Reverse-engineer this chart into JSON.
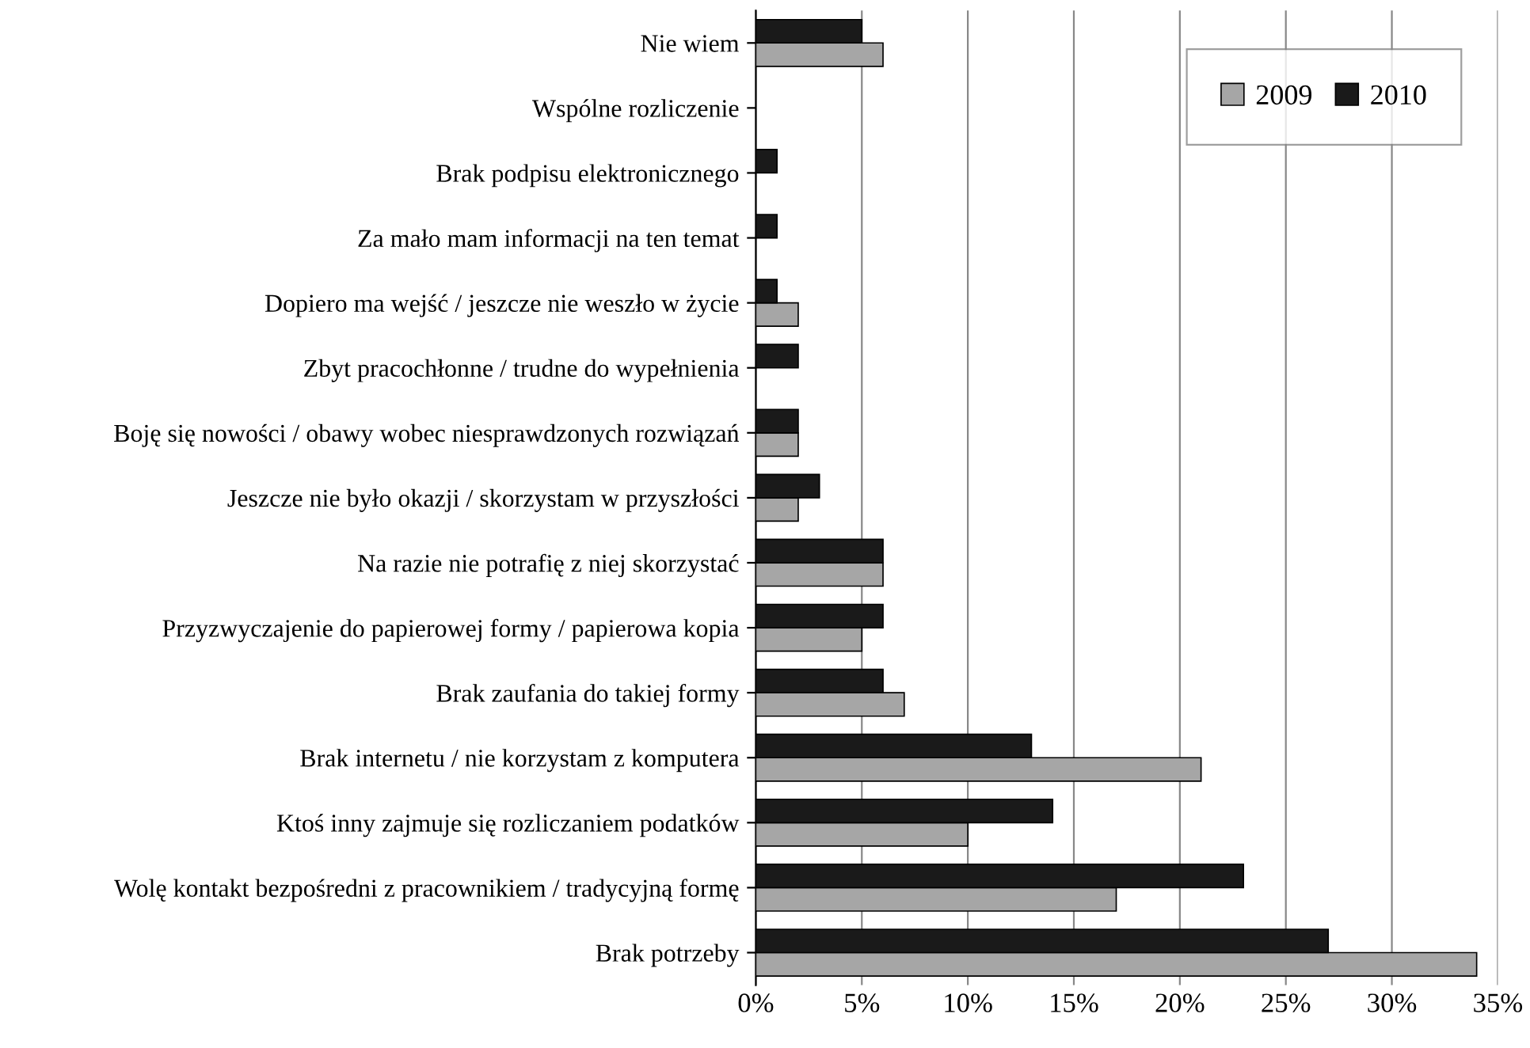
{
  "chart_data": {
    "type": "bar",
    "orientation": "horizontal",
    "categories": [
      "Nie wiem",
      "Wspólne rozliczenie",
      "Brak podpisu elektronicznego",
      "Za mało mam informacji na ten temat",
      "Dopiero ma wejść / jeszcze nie weszło w życie",
      "Zbyt pracochłonne / trudne do wypełnienia",
      "Boję się nowości / obawy wobec niesprawdzonych rozwiązań",
      "Jeszcze nie było okazji / skorzystam w przyszłości",
      "Na razie nie potrafię z niej skorzystać",
      "Przyzwyczajenie do papierowej formy / papierowa kopia",
      "Brak zaufania do takiej formy",
      "Brak internetu / nie korzystam z komputera",
      "Ktoś inny zajmuje się rozliczaniem podatków",
      "Wolę kontakt bezpośredni z pracownikiem / tradycyjną formę",
      "Brak potrzeby"
    ],
    "series": [
      {
        "name": "2009",
        "color": "#a6a6a6",
        "values": [
          6,
          0,
          0,
          0,
          2,
          0,
          2,
          2,
          6,
          5,
          7,
          21,
          10,
          17,
          34
        ]
      },
      {
        "name": "2010",
        "color": "#1a1a1a",
        "values": [
          5,
          0,
          1,
          1,
          1,
          2,
          2,
          3,
          6,
          6,
          6,
          13,
          14,
          23,
          27
        ]
      }
    ],
    "xlim": [
      0,
      35
    ],
    "xticks": [
      {
        "value": 0,
        "label": "0%"
      },
      {
        "value": 5,
        "label": "5%"
      },
      {
        "value": 10,
        "label": "10%"
      },
      {
        "value": 15,
        "label": "15%"
      },
      {
        "value": 20,
        "label": "20%"
      },
      {
        "value": 25,
        "label": "25%"
      },
      {
        "value": 30,
        "label": "30%"
      },
      {
        "value": 35,
        "label": "35%"
      }
    ],
    "grid": "x",
    "legend": "top right"
  }
}
